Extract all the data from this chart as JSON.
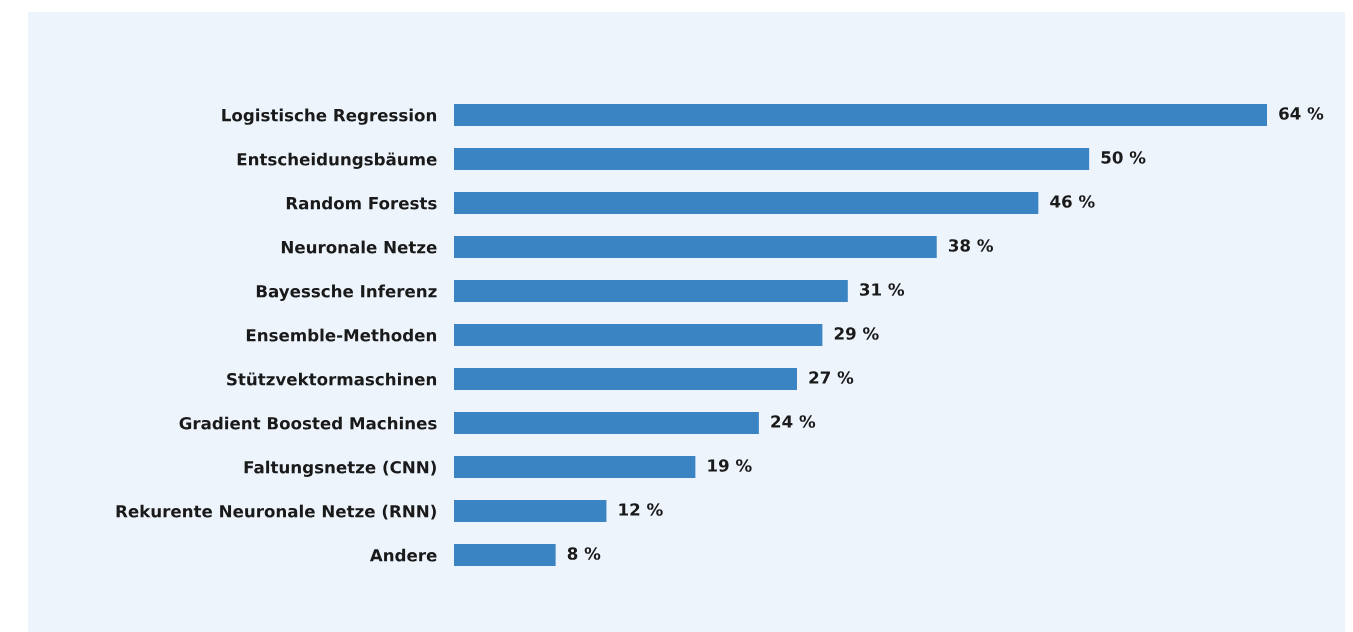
{
  "chart_data": {
    "type": "bar",
    "orientation": "horizontal",
    "categories": [
      "Logistische Regression",
      "Entscheidungsbäume",
      "Random Forests",
      "Neuronale Netze",
      "Bayessche Inferenz",
      "Ensemble-Methoden",
      "Stützvektormaschinen",
      "Gradient Boosted Machines",
      "Faltungsnetze (CNN)",
      "Rekurente Neuronale Netze (RNN)",
      "Andere"
    ],
    "values": [
      64,
      50,
      46,
      38,
      31,
      29,
      27,
      24,
      19,
      12,
      8
    ],
    "value_labels": [
      "64 %",
      "50 %",
      "46 %",
      "38 %",
      "31 %",
      "29 %",
      "27 %",
      "24 %",
      "19 %",
      "12 %",
      "8 %"
    ],
    "color": "#3b84c4",
    "tick_labels": "y",
    "grid": false,
    "legend": false
  }
}
